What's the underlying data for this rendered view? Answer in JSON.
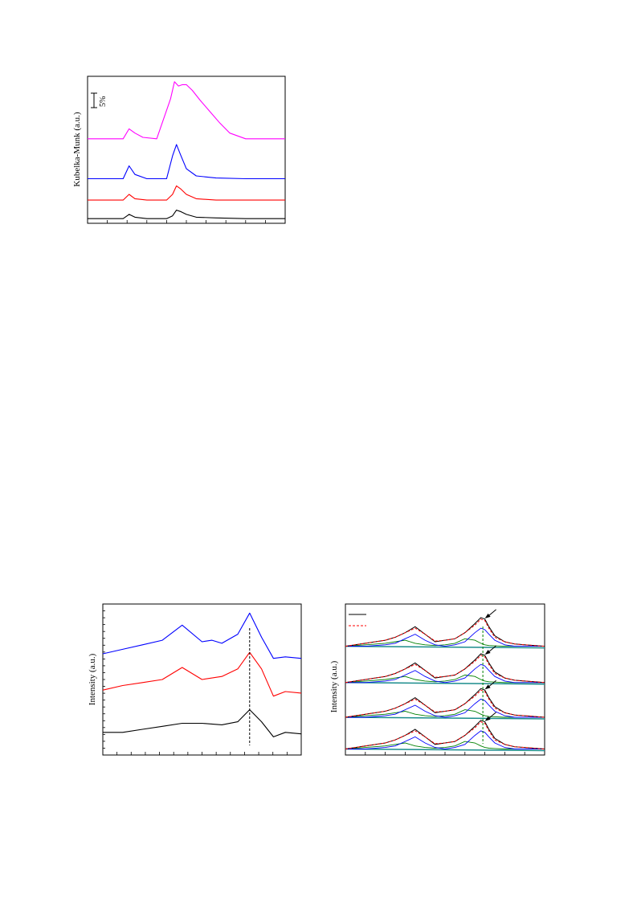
{
  "chart_data": [
    {
      "type": "line",
      "title": "",
      "xlabel": "",
      "ylabel": "Kubelka-Munk (a.u.)",
      "scale_bar_label": "5%",
      "grid": false,
      "legend": "none",
      "x_range": [
        0,
        100
      ],
      "y_range": [
        0,
        100
      ],
      "series": [
        {
          "color": "#000000",
          "x": [
            0,
            18,
            21,
            24,
            30,
            40,
            43,
            45,
            47,
            50,
            55,
            65,
            80,
            100
          ],
          "y": [
            1,
            1,
            4,
            2,
            1,
            1,
            3,
            7,
            6,
            4,
            2,
            1.5,
            1,
            1
          ]
        },
        {
          "color": "#ff0000",
          "x": [
            0,
            18,
            21,
            24,
            30,
            40,
            43,
            45,
            47,
            50,
            55,
            65,
            80,
            100
          ],
          "y": [
            14,
            14,
            18,
            15,
            14,
            14,
            18,
            24,
            22,
            18,
            15,
            14,
            14,
            14
          ]
        },
        {
          "color": "#0000ff",
          "x": [
            0,
            18,
            21,
            24,
            30,
            40,
            43,
            45,
            47,
            50,
            55,
            65,
            80,
            100
          ],
          "y": [
            29,
            29,
            38,
            32,
            29,
            29,
            45,
            53,
            46,
            36,
            31,
            29.5,
            29,
            29
          ]
        },
        {
          "color": "#ff00ff",
          "x": [
            0,
            18,
            21,
            24,
            28,
            35,
            42,
            44,
            46,
            48,
            50,
            53,
            57,
            62,
            67,
            72,
            80,
            100
          ],
          "y": [
            57,
            57,
            64,
            61,
            58,
            57,
            85,
            97,
            94,
            95,
            95,
            91,
            84,
            76,
            68,
            61,
            57,
            57
          ]
        }
      ]
    },
    {
      "type": "line",
      "title": "",
      "xlabel": "",
      "ylabel": "Intensity (a.u.)",
      "grid": false,
      "legend": "none",
      "x_range": [
        0,
        100
      ],
      "y_range": [
        0,
        100
      ],
      "reference_line_x": 74,
      "series": [
        {
          "color": "#000000",
          "x": [
            0,
            10,
            20,
            30,
            40,
            50,
            60,
            68,
            74,
            80,
            86,
            92,
            100
          ],
          "y": [
            15,
            15,
            17,
            19,
            21,
            21,
            20,
            22,
            30,
            22,
            12,
            15,
            14
          ]
        },
        {
          "color": "#ff0000",
          "x": [
            0,
            10,
            20,
            30,
            40,
            50,
            60,
            68,
            74,
            80,
            86,
            92,
            100
          ],
          "y": [
            43,
            46,
            48,
            50,
            58,
            50,
            52,
            57,
            68,
            57,
            39,
            42,
            41
          ]
        },
        {
          "color": "#0000ff",
          "x": [
            0,
            10,
            20,
            30,
            40,
            50,
            55,
            60,
            68,
            74,
            80,
            86,
            92,
            100
          ],
          "y": [
            67,
            70,
            73,
            76,
            86,
            75,
            76,
            74,
            80,
            94,
            78,
            64,
            65,
            64
          ]
        }
      ]
    },
    {
      "type": "line",
      "title": "",
      "xlabel": "",
      "ylabel": "Intensity (a.u.)",
      "grid": false,
      "legend": "top-left",
      "x_range": [
        0,
        100
      ],
      "y_range": [
        0,
        100
      ],
      "reference_line_x": 69,
      "stack_offsets": [
        4,
        25,
        48,
        72
      ],
      "peak_profile_x": [
        0,
        10,
        20,
        25,
        30,
        35,
        40,
        45,
        50,
        55,
        60,
        65,
        68,
        70,
        72,
        75,
        80,
        85,
        90,
        100
      ],
      "experimental": [
        0,
        2,
        4,
        6,
        9,
        13,
        8,
        3,
        4,
        5,
        9,
        15,
        19,
        18,
        13,
        7,
        3,
        1.5,
        1,
        0
      ],
      "fitted": [
        0,
        2,
        4,
        6,
        9,
        12,
        8,
        3.5,
        4,
        5,
        9,
        14,
        18,
        17,
        12,
        6,
        3,
        1.5,
        1,
        0
      ],
      "components": [
        {
          "color": "#008000",
          "y": [
            0,
            1,
            2,
            3,
            4,
            2,
            1,
            0.5,
            1,
            2,
            5,
            4,
            2,
            1,
            0.5,
            0.3,
            0,
            0,
            0,
            0
          ]
        },
        {
          "color": "#0000ff",
          "y": [
            0,
            0,
            1,
            2,
            5,
            8,
            4,
            1,
            0,
            1,
            3,
            9,
            12,
            11,
            8,
            4,
            1,
            0,
            0,
            0
          ]
        }
      ],
      "legend_line_colors": [
        "#000000",
        "#ff0000"
      ]
    }
  ]
}
